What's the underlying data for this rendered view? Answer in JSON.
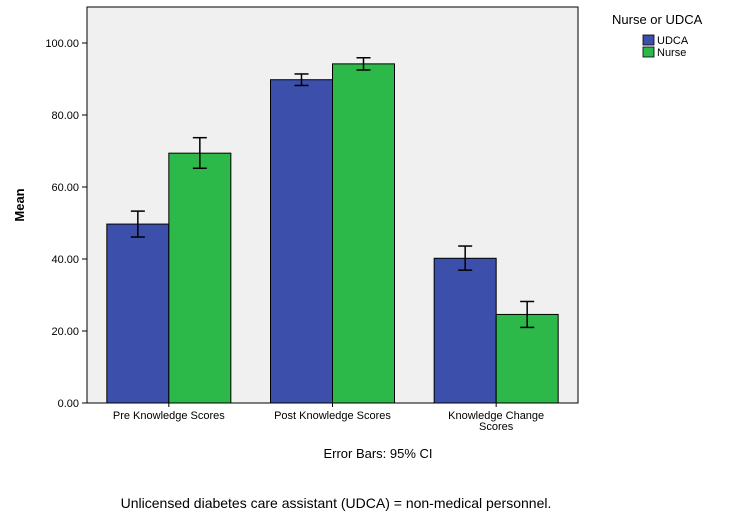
{
  "chart_data": {
    "type": "bar",
    "title": "",
    "xlabel": "",
    "ylabel": "Mean",
    "ylim": [
      0,
      110
    ],
    "yticks": [
      "0.00",
      "20.00",
      "40.00",
      "60.00",
      "80.00",
      "100.00"
    ],
    "categories": [
      [
        "Pre Knowledge Scores"
      ],
      [
        "Post Knowledge Scores"
      ],
      [
        "Knowledge Change",
        "Scores"
      ]
    ],
    "series": [
      {
        "name": "UDCA",
        "color": "#3c4fab",
        "values": [
          49.7,
          89.8,
          40.2
        ],
        "ci_low": [
          46.1,
          88.2,
          36.9
        ],
        "ci_high": [
          53.3,
          91.4,
          43.6
        ]
      },
      {
        "name": "Nurse",
        "color": "#2db84a",
        "values": [
          69.4,
          94.2,
          24.6
        ],
        "ci_low": [
          65.2,
          92.5,
          21.0
        ],
        "ci_high": [
          73.7,
          95.9,
          28.2
        ]
      }
    ],
    "legend_title": "Nurse or UDCA",
    "legend_position": "top-right",
    "plot_background": "#f0f0f0",
    "error_bar_note": "Error Bars: 95% CI"
  },
  "footnote": "Unlicensed diabetes care assistant (UDCA) = non-medical personnel."
}
